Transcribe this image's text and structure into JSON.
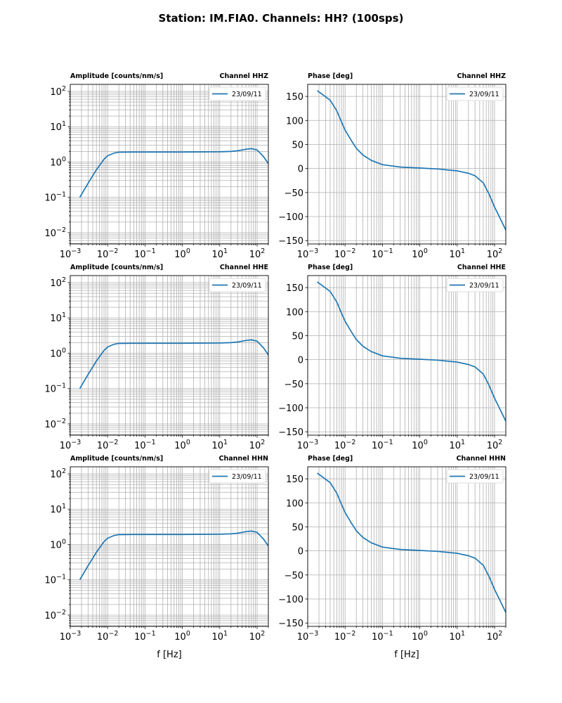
{
  "figure_title": "Station: IM.FIA0. Channels: HH? (100sps)",
  "colors": {
    "line": "#1f77b4",
    "grid": "#b0b0b0"
  },
  "chart_data": [
    {
      "type": "line",
      "kind": "amplitude",
      "title_left": "Amplitude [counts/nm/s]",
      "title_right": "Channel HHZ",
      "xlabel": "",
      "xscale": "log",
      "yscale": "log",
      "xlim": [
        0.001,
        200
      ],
      "ylim": [
        0.0048,
        158
      ],
      "grid": true,
      "legend": "top-right",
      "series": [
        {
          "name": "23/09/11"
        }
      ]
    },
    {
      "type": "line",
      "kind": "phase",
      "title_left": "Phase [deg]",
      "title_right": "Channel HHZ",
      "xlabel": "",
      "xscale": "log",
      "yscale": "linear",
      "xlim": [
        0.001,
        200
      ],
      "ylim": [
        -157,
        175
      ],
      "grid": true,
      "legend": "top-right",
      "series": [
        {
          "name": "23/09/11"
        }
      ]
    },
    {
      "type": "line",
      "kind": "amplitude",
      "title_left": "Amplitude [counts/nm/s]",
      "title_right": "Channel HHE",
      "xlabel": "",
      "xscale": "log",
      "yscale": "log",
      "xlim": [
        0.001,
        200
      ],
      "ylim": [
        0.0048,
        158
      ],
      "grid": true,
      "legend": "top-right",
      "series": [
        {
          "name": "23/09/11"
        }
      ]
    },
    {
      "type": "line",
      "kind": "phase",
      "title_left": "Phase [deg]",
      "title_right": "Channel HHE",
      "xlabel": "",
      "xscale": "log",
      "yscale": "linear",
      "xlim": [
        0.001,
        200
      ],
      "ylim": [
        -157,
        175
      ],
      "grid": true,
      "legend": "top-right",
      "series": [
        {
          "name": "23/09/11"
        }
      ]
    },
    {
      "type": "line",
      "kind": "amplitude",
      "title_left": "Amplitude [counts/nm/s]",
      "title_right": "Channel HHN",
      "xlabel": "f [Hz]",
      "xscale": "log",
      "yscale": "log",
      "xlim": [
        0.001,
        200
      ],
      "ylim": [
        0.0048,
        158
      ],
      "grid": true,
      "legend": "top-right",
      "series": [
        {
          "name": "23/09/11"
        }
      ]
    },
    {
      "type": "line",
      "kind": "phase",
      "title_left": "Phase [deg]",
      "title_right": "Channel HHN",
      "xlabel": "f [Hz]",
      "xscale": "log",
      "yscale": "linear",
      "xlim": [
        0.001,
        200
      ],
      "ylim": [
        -157,
        175
      ],
      "grid": true,
      "legend": "top-right",
      "series": [
        {
          "name": "23/09/11"
        }
      ]
    }
  ],
  "amplitude_curve": {
    "x": [
      0.0018,
      0.003,
      0.005,
      0.008,
      0.01,
      0.015,
      0.02,
      0.05,
      0.1,
      1,
      10,
      20,
      30,
      50,
      70,
      100,
      150,
      200
    ],
    "y": [
      0.1,
      0.25,
      0.6,
      1.2,
      1.5,
      1.8,
      1.9,
      1.92,
      1.92,
      1.92,
      1.95,
      2.0,
      2.08,
      2.3,
      2.4,
      2.2,
      1.4,
      0.9
    ]
  },
  "phase_curve": {
    "x": [
      0.0018,
      0.004,
      0.006,
      0.008,
      0.01,
      0.015,
      0.02,
      0.03,
      0.05,
      0.1,
      0.3,
      1,
      3,
      10,
      20,
      30,
      50,
      70,
      100,
      150,
      200
    ],
    "y": [
      162,
      142,
      120,
      97,
      80,
      57,
      42,
      28,
      17,
      8,
      3,
      1,
      -1,
      -5,
      -10,
      -15,
      -30,
      -52,
      -80,
      -108,
      -128
    ]
  },
  "x_ticks": [
    "10^-3",
    "10^-2",
    "10^-1",
    "10^0",
    "10^1",
    "10^2"
  ],
  "amp_y_ticks": [
    "10^-2",
    "10^-1",
    "10^0",
    "10^1",
    "10^2"
  ],
  "phase_y_ticks": [
    "150",
    "100",
    "50",
    "0",
    "−50",
    "−100",
    "−150"
  ]
}
